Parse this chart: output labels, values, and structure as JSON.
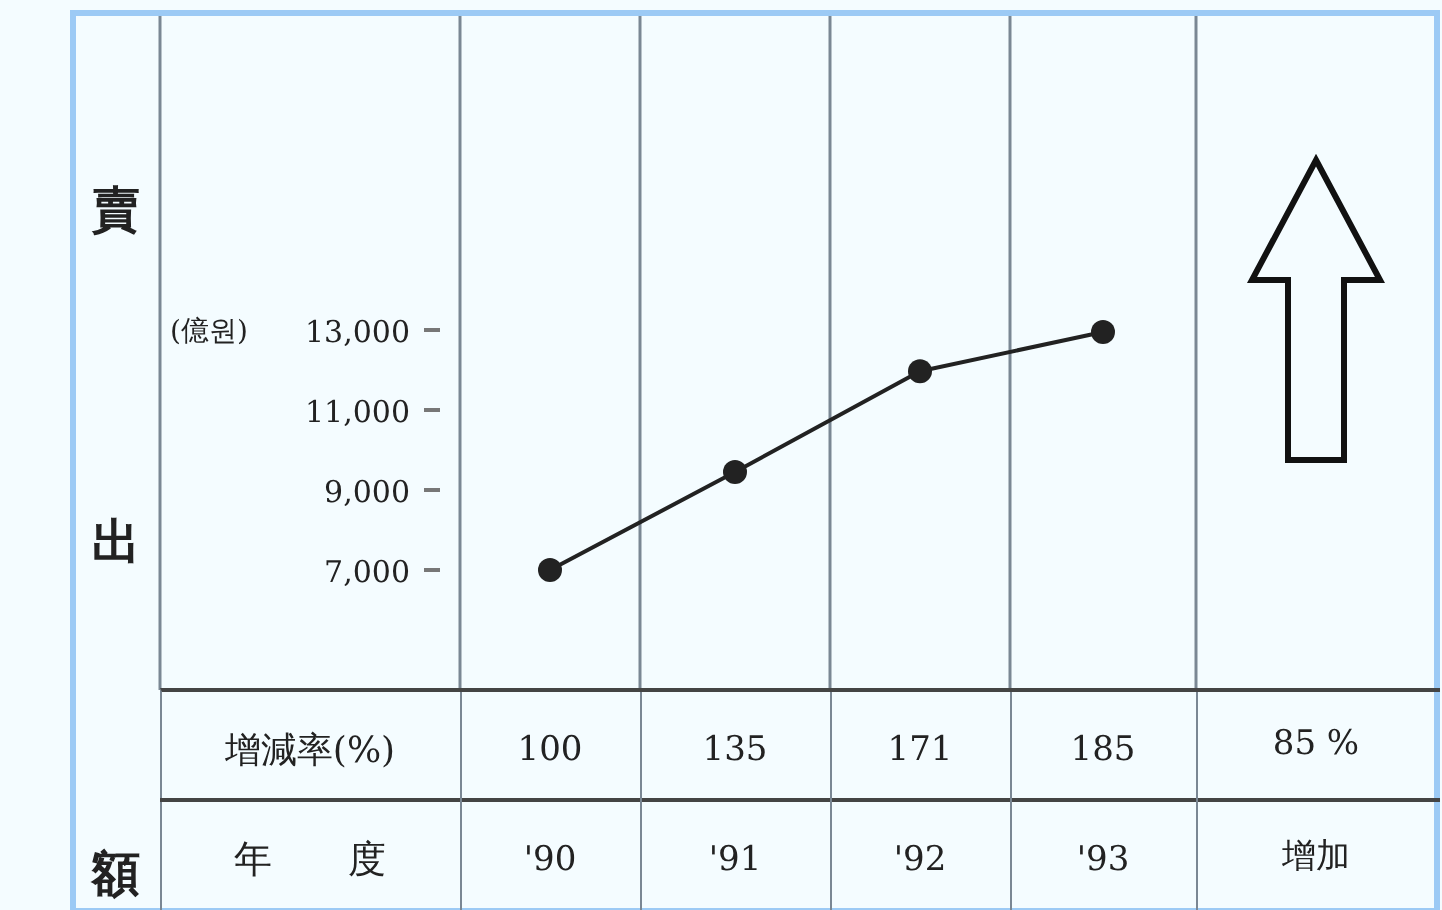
{
  "chart_data": {
    "type": "line",
    "ylabel": "賣出額",
    "xlabel": "年　　度",
    "categories": [
      "'90",
      "'91",
      "'92",
      "'93"
    ],
    "series": [
      {
        "color": "#222222",
        "values": [
          7000,
          9450,
          11970,
          12950
        ]
      }
    ],
    "ylim": [
      4000,
      21000
    ],
    "yticks": [
      {
        "value": 7000,
        "label": "7,000"
      },
      {
        "value": 9000,
        "label": "9,000"
      },
      {
        "value": 11000,
        "label": "11,000"
      },
      {
        "value": 13000,
        "label": "13,000"
      }
    ],
    "marker": "circle",
    "line_style": "solid",
    "annotations": [
      "(億원)",
      "增減率(%)",
      "100",
      "135",
      "171",
      "185",
      "85 %",
      "增加"
    ]
  }
}
